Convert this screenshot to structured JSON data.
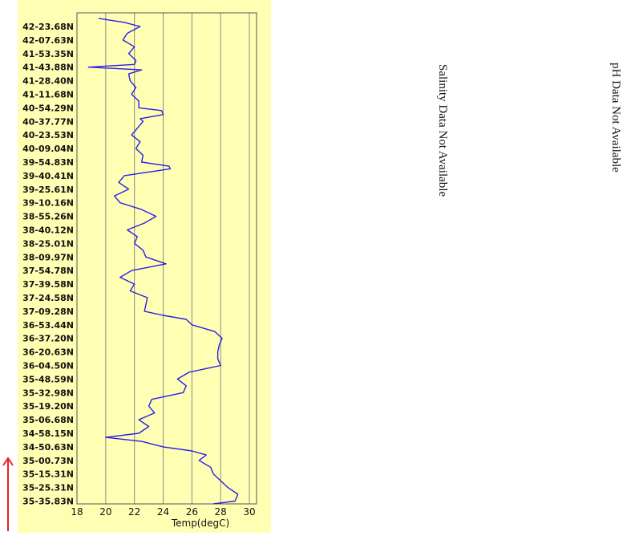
{
  "chart_data": {
    "type": "line",
    "xlabel": "Temp(degC)",
    "xlim": [
      18,
      30.5
    ],
    "x_ticks": [
      18,
      20,
      22,
      24,
      26,
      28,
      30
    ],
    "y_tick_labels": [
      "42-23.68N",
      "42-07.63N",
      "41-53.35N",
      "41-43.88N",
      "41-28.40N",
      "41-11.68N",
      "40-54.29N",
      "40-37.77N",
      "40-23.53N",
      "40-09.04N",
      "39-54.83N",
      "39-40.41N",
      "39-25.61N",
      "39-10.16N",
      "38-55.26N",
      "38-40.12N",
      "38-25.01N",
      "38-09.97N",
      "37-54.78N",
      "37-39.58N",
      "37-24.58N",
      "37-09.28N",
      "36-53.44N",
      "36-37.20N",
      "36-20.63N",
      "36-04.50N",
      "35-48.59N",
      "35-32.98N",
      "35-19.20N",
      "35-06.68N",
      "34-58.15N",
      "34-50.63N",
      "35-00.73N",
      "35-15.31N",
      "35-25.31N",
      "35-35.83N"
    ],
    "grid": "vertical",
    "line_color": "#2a1ee6",
    "direction_arrow_color": "#e8202a",
    "series": [
      {
        "y": [
          -0.6,
          -0.3,
          0.0,
          0.5,
          1.0,
          1.5,
          2.0,
          2.5,
          2.8,
          3.0,
          3.2,
          3.5,
          4.0,
          4.5,
          5.0,
          5.5,
          6.0,
          6.2,
          6.5,
          6.8,
          7.0,
          7.5,
          8.0,
          8.5,
          9.0,
          9.5,
          10.0,
          10.3,
          10.5,
          11.0,
          11.5,
          12.0,
          12.5,
          13.0,
          13.5,
          14.0,
          14.5,
          15.0,
          15.5,
          16.0,
          16.5,
          17.0,
          17.5,
          18.0,
          18.5,
          19.0,
          19.5,
          20.0,
          20.5,
          21.0,
          21.3,
          21.6,
          22.0,
          22.5,
          23.0,
          23.5,
          24.0,
          24.5,
          25.0,
          25.5,
          26.0,
          26.5,
          27.0,
          27.5,
          28.0,
          28.5,
          29.0,
          29.5,
          30.0,
          30.3,
          30.6,
          31.0,
          31.3,
          31.6,
          32.0,
          32.5,
          33.0,
          33.5,
          34.0,
          34.5,
          35.0,
          35.2
        ],
        "x": [
          19.5,
          21.3,
          22.4,
          21.5,
          21.2,
          22.0,
          21.6,
          22.1,
          22.0,
          18.8,
          22.5,
          21.6,
          21.7,
          22.1,
          21.8,
          22.3,
          22.3,
          23.9,
          24.0,
          22.4,
          22.6,
          22.2,
          21.8,
          22.4,
          22.1,
          22.6,
          22.5,
          24.4,
          24.5,
          21.3,
          20.9,
          21.6,
          20.6,
          21.0,
          22.5,
          23.5,
          22.7,
          21.5,
          22.2,
          22.0,
          22.6,
          22.8,
          24.2,
          21.8,
          21.0,
          22.0,
          21.7,
          22.9,
          22.8,
          22.7,
          24.0,
          25.6,
          26.0,
          27.6,
          28.1,
          27.9,
          27.8,
          27.8,
          28.0,
          25.8,
          25.0,
          25.6,
          25.4,
          23.2,
          23.0,
          23.4,
          22.3,
          23.0,
          22.3,
          20.0,
          22.5,
          24.0,
          26.0,
          27.0,
          26.5,
          27.3,
          27.5,
          28.0,
          28.5,
          29.2,
          29.0,
          27.5
        ]
      }
    ]
  },
  "notes": {
    "salinity": "Salinity Data Not Available",
    "ph": "pH Data Not Available"
  }
}
